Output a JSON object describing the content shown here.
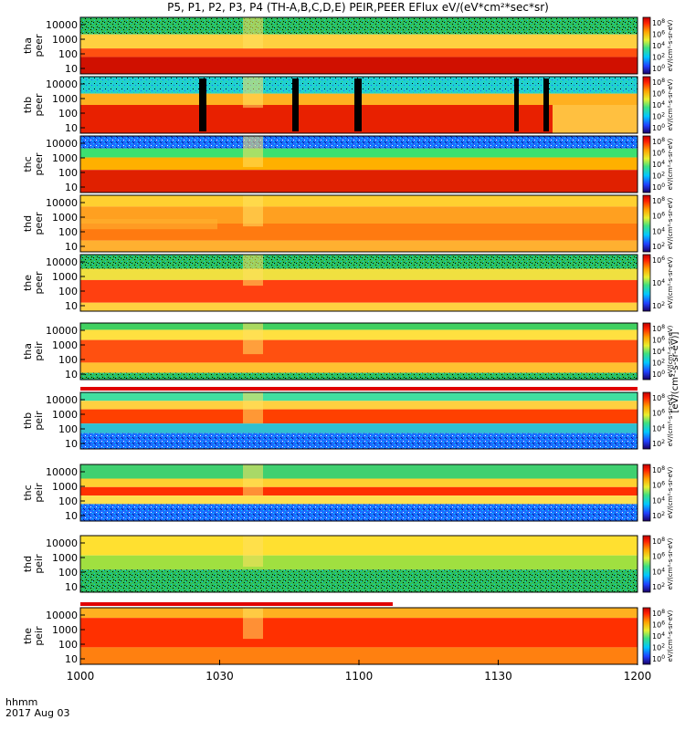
{
  "chart_data": {
    "type": "heatmap",
    "title": "P5, P1, P2, P3, P4 (TH-A,B,C,D,E) PEIR,PEER EFlux eV/(eV*cm²*sec*sr)",
    "x_ticks": [
      "1000",
      "1030",
      "1100",
      "1130",
      "1200"
    ],
    "x_range": [
      "10:00",
      "12:00"
    ],
    "x_footer_label": "hhmm",
    "date_label": "2017 Aug 03",
    "y_ticks": [
      "10000",
      "1000",
      "100",
      "10"
    ],
    "colorbar_unit": "eV/(cm²-s-sr-eV)",
    "colorbar_unit_full": "[eV/(cm²-s-sr-eV)]",
    "panels": [
      {
        "name": "tha_peer",
        "label_top": "tha",
        "label_bottom": "peer",
        "cbar_ticks": [
          "10^8",
          "10^6",
          "10^4",
          "10^2",
          "10^0"
        ]
      },
      {
        "name": "thb_peer",
        "label_top": "thb",
        "label_bottom": "peer",
        "cbar_ticks": [
          "10^8",
          "10^6",
          "10^4",
          "10^2",
          "10^0"
        ]
      },
      {
        "name": "thc_peer",
        "label_top": "thc",
        "label_bottom": "peer",
        "cbar_ticks": [
          "10^8",
          "10^6",
          "10^4",
          "10^2",
          "10^0"
        ]
      },
      {
        "name": "thd_peer",
        "label_top": "thd",
        "label_bottom": "peer",
        "cbar_ticks": [
          "10^8",
          "10^6",
          "10^4",
          "10^2"
        ]
      },
      {
        "name": "the_peer",
        "label_top": "the",
        "label_bottom": "peer",
        "cbar_ticks": [
          "10^6",
          "10^4",
          "10^2"
        ]
      },
      {
        "name": "tha_peir",
        "label_top": "tha",
        "label_bottom": "peir",
        "cbar_ticks": [
          "10^8",
          "10^6",
          "10^4",
          "10^2",
          "10^0"
        ]
      },
      {
        "name": "thb_peir",
        "label_top": "thb",
        "label_bottom": "peir",
        "cbar_ticks": [
          "10^8",
          "10^6",
          "10^4",
          "10^2"
        ]
      },
      {
        "name": "thc_peir",
        "label_top": "thc",
        "label_bottom": "peir",
        "cbar_ticks": [
          "10^8",
          "10^6",
          "10^4",
          "10^2"
        ]
      },
      {
        "name": "thd_peir",
        "label_top": "thd",
        "label_bottom": "peir",
        "cbar_ticks": [
          "10^8",
          "10^6",
          "10^4",
          "10^2"
        ]
      },
      {
        "name": "the_peir",
        "label_top": "the",
        "label_bottom": "peir",
        "cbar_ticks": [
          "10^8",
          "10^6",
          "10^4",
          "10^2",
          "10^0"
        ]
      }
    ]
  }
}
